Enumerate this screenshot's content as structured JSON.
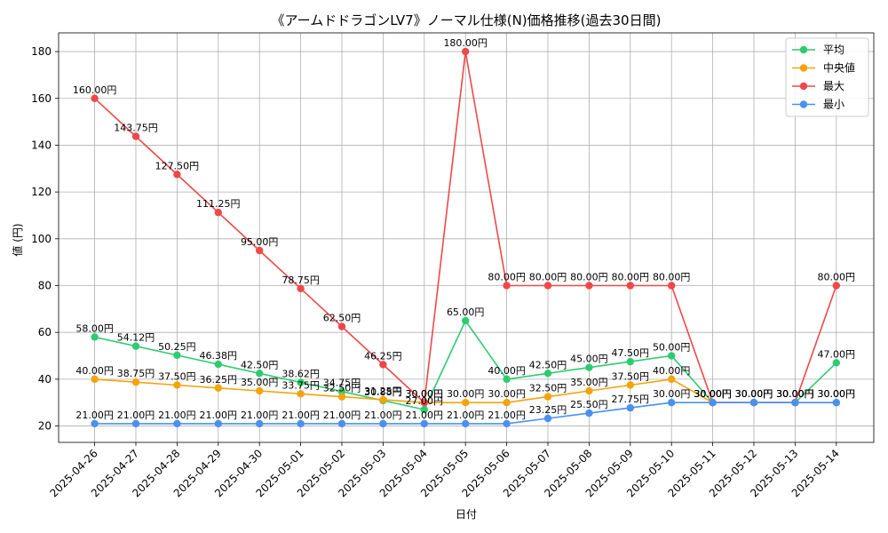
{
  "chart_data": {
    "type": "line",
    "title": "《アームドドラゴンLV7》ノーマル仕様(N)価格推移(過去30日間)",
    "xlabel": "日付",
    "ylabel": "値 (円)",
    "ylim": [
      13,
      188
    ],
    "yticks": [
      20,
      40,
      60,
      80,
      100,
      120,
      140,
      160,
      180
    ],
    "grid": true,
    "legend_position": "top-right",
    "value_suffix": "円",
    "categories": [
      "2025-04-26",
      "2025-04-27",
      "2025-04-28",
      "2025-04-29",
      "2025-04-30",
      "2025-05-01",
      "2025-05-02",
      "2025-05-03",
      "2025-05-04",
      "2025-05-05",
      "2025-05-06",
      "2025-05-07",
      "2025-05-08",
      "2025-05-09",
      "2025-05-10",
      "2025-05-11",
      "2025-05-12",
      "2025-05-13",
      "2025-05-14"
    ],
    "series": [
      {
        "name": "平均",
        "color": "#2ecc71",
        "values": [
          58.0,
          54.12,
          50.25,
          46.38,
          42.5,
          38.62,
          34.75,
          30.88,
          27.0,
          65.0,
          40.0,
          42.5,
          45.0,
          47.5,
          50.0,
          30.0,
          30.0,
          30.0,
          47.0
        ]
      },
      {
        "name": "中央値",
        "color": "#f5a30a",
        "values": [
          40.0,
          38.75,
          37.5,
          36.25,
          35.0,
          33.75,
          32.5,
          31.25,
          30.0,
          30.0,
          30.0,
          32.5,
          35.0,
          37.5,
          40.0,
          30.0,
          30.0,
          30.0,
          30.0
        ]
      },
      {
        "name": "最大",
        "color": "#f04848",
        "values": [
          160.0,
          143.75,
          127.5,
          111.25,
          95.0,
          78.75,
          62.5,
          46.25,
          30.0,
          180.0,
          80.0,
          80.0,
          80.0,
          80.0,
          80.0,
          30.0,
          30.0,
          30.0,
          80.0
        ]
      },
      {
        "name": "最小",
        "color": "#4a90f0",
        "values": [
          21.0,
          21.0,
          21.0,
          21.0,
          21.0,
          21.0,
          21.0,
          21.0,
          21.0,
          21.0,
          21.0,
          23.25,
          25.5,
          27.75,
          30.0,
          30.0,
          30.0,
          30.0,
          30.0
        ]
      }
    ]
  }
}
